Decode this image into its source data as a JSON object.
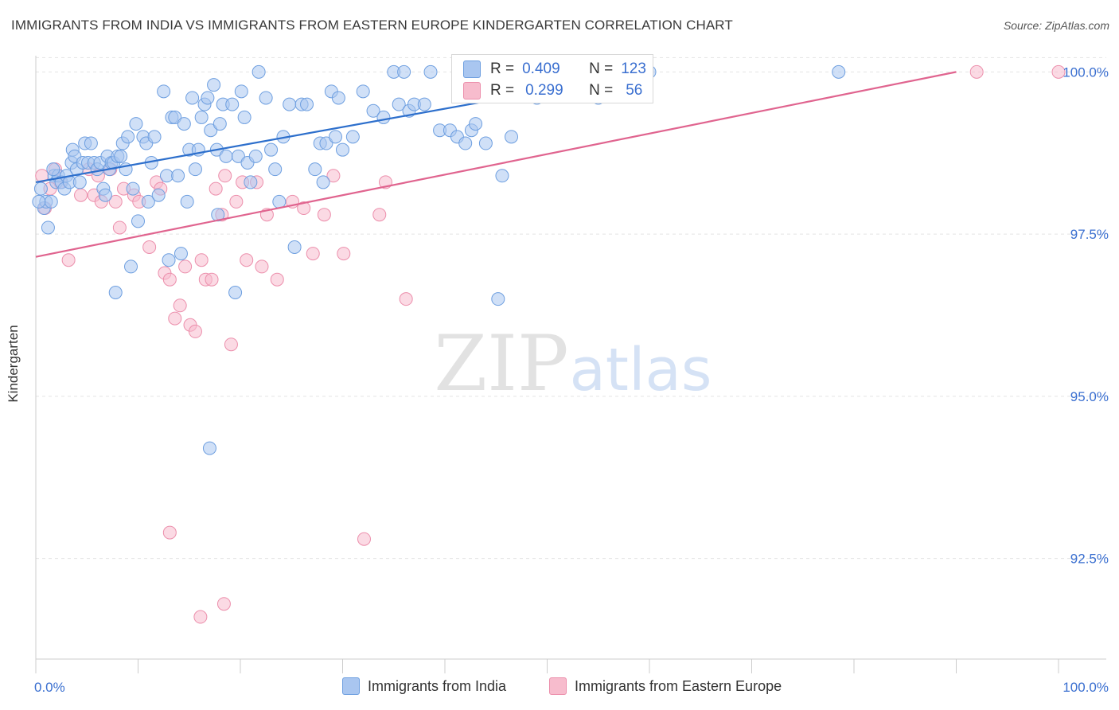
{
  "title": "IMMIGRANTS FROM INDIA VS IMMIGRANTS FROM EASTERN EUROPE KINDERGARTEN CORRELATION CHART",
  "source": "Source: ZipAtlas.com",
  "watermark": {
    "zip": "ZIP",
    "atlas": "atlas"
  },
  "colors": {
    "blue_fill": "#a9c6f0",
    "blue_stroke": "#6e9fe0",
    "blue_line": "#2d6fcc",
    "pink_fill": "#f7bccd",
    "pink_stroke": "#ec8fac",
    "pink_line": "#e0648f",
    "tick_label": "#3a6fd0",
    "grid": "#e3e3e3"
  },
  "legend_top": {
    "rows": [
      {
        "r_label": "R =",
        "r_value": "0.409",
        "n_label": "N =",
        "n_value": "123",
        "series": "india"
      },
      {
        "r_label": "R =",
        "r_value": "0.299",
        "n_label": "N =",
        "n_value": "56",
        "series": "eastern_europe"
      }
    ]
  },
  "chart_data": {
    "type": "scatter",
    "title": "IMMIGRANTS FROM INDIA VS IMMIGRANTS FROM EASTERN EUROPE KINDERGARTEN CORRELATION CHART",
    "xlabel": "",
    "ylabel": "Kindergarten",
    "xlim": [
      0,
      100
    ],
    "ylim": [
      90.95,
      100.25
    ],
    "x_tick_labels": [
      "0.0%",
      "100.0%"
    ],
    "y_ticks": [
      92.5,
      95.0,
      97.5,
      100.0
    ],
    "y_tick_labels": [
      "92.5%",
      "95.0%",
      "97.5%",
      "100.0%"
    ],
    "grid": true,
    "legend": "bottom",
    "series": [
      {
        "name": "Immigrants from India",
        "key": "india",
        "r": 0.409,
        "n": 123,
        "trend": {
          "x0": 0,
          "y0": 98.3,
          "x1": 60,
          "y1": 100.0
        },
        "points": [
          [
            0.5,
            98.2
          ],
          [
            0.8,
            97.9
          ],
          [
            1,
            98.0
          ],
          [
            1.2,
            97.6
          ],
          [
            1.5,
            98.0
          ],
          [
            1.8,
            98.4
          ],
          [
            2,
            98.3
          ],
          [
            2.2,
            98.4
          ],
          [
            2.5,
            98.3
          ],
          [
            2.8,
            98.2
          ],
          [
            3,
            98.4
          ],
          [
            3.3,
            98.3
          ],
          [
            3.5,
            98.6
          ],
          [
            3.6,
            98.8
          ],
          [
            3.8,
            98.7
          ],
          [
            4,
            98.5
          ],
          [
            4.3,
            98.3
          ],
          [
            4.6,
            98.6
          ],
          [
            4.8,
            98.9
          ],
          [
            5.1,
            98.6
          ],
          [
            5.4,
            98.9
          ],
          [
            5.7,
            98.6
          ],
          [
            6,
            98.5
          ],
          [
            6.3,
            98.6
          ],
          [
            6.6,
            98.2
          ],
          [
            6.8,
            98.1
          ],
          [
            7,
            98.7
          ],
          [
            7.2,
            98.5
          ],
          [
            7.4,
            98.6
          ],
          [
            7.6,
            98.6
          ],
          [
            8,
            98.7
          ],
          [
            8.3,
            98.7
          ],
          [
            8.5,
            98.9
          ],
          [
            8.8,
            98.5
          ],
          [
            9,
            99.0
          ],
          [
            9.3,
            97.0
          ],
          [
            9.5,
            98.2
          ],
          [
            9.8,
            99.2
          ],
          [
            10,
            97.7
          ],
          [
            10.5,
            99.0
          ],
          [
            10.8,
            98.9
          ],
          [
            11,
            98.0
          ],
          [
            11.3,
            98.6
          ],
          [
            11.6,
            99.0
          ],
          [
            12,
            98.1
          ],
          [
            12.5,
            99.7
          ],
          [
            12.8,
            98.4
          ],
          [
            13,
            97.1
          ],
          [
            13.3,
            99.3
          ],
          [
            13.6,
            99.3
          ],
          [
            13.9,
            98.4
          ],
          [
            14.2,
            97.2
          ],
          [
            14.5,
            99.2
          ],
          [
            14.8,
            98.0
          ],
          [
            15,
            98.8
          ],
          [
            15.3,
            99.6
          ],
          [
            15.6,
            98.5
          ],
          [
            15.9,
            98.8
          ],
          [
            16.2,
            99.3
          ],
          [
            16.5,
            99.5
          ],
          [
            16.8,
            99.6
          ],
          [
            17.1,
            99.1
          ],
          [
            17.4,
            99.8
          ],
          [
            17.7,
            98.8
          ],
          [
            18,
            99.2
          ],
          [
            18.3,
            99.5
          ],
          [
            18.6,
            98.7
          ],
          [
            17,
            94.2
          ],
          [
            17.8,
            97.8
          ],
          [
            19.2,
            99.5
          ],
          [
            19.5,
            96.6
          ],
          [
            19.8,
            98.7
          ],
          [
            20.1,
            99.7
          ],
          [
            20.4,
            99.3
          ],
          [
            20.7,
            98.6
          ],
          [
            21,
            98.3
          ],
          [
            21.5,
            98.7
          ],
          [
            21.8,
            100.0
          ],
          [
            22.5,
            99.6
          ],
          [
            23,
            98.8
          ],
          [
            23.4,
            98.5
          ],
          [
            23.8,
            98.0
          ],
          [
            24.2,
            99.0
          ],
          [
            24.8,
            99.5
          ],
          [
            25.3,
            97.3
          ],
          [
            26,
            99.5
          ],
          [
            26.5,
            99.5
          ],
          [
            27.3,
            98.5
          ],
          [
            27.8,
            98.9
          ],
          [
            28.1,
            98.3
          ],
          [
            28.4,
            98.9
          ],
          [
            28.9,
            99.7
          ],
          [
            29.3,
            99.0
          ],
          [
            29.6,
            99.6
          ],
          [
            30,
            98.8
          ],
          [
            31,
            99.0
          ],
          [
            32,
            99.7
          ],
          [
            33,
            99.4
          ],
          [
            34,
            99.3
          ],
          [
            35,
            100.0
          ],
          [
            35.5,
            99.5
          ],
          [
            36,
            100.0
          ],
          [
            36.5,
            99.4
          ],
          [
            37,
            99.5
          ],
          [
            38,
            99.5
          ],
          [
            38.6,
            100.0
          ],
          [
            39.5,
            99.1
          ],
          [
            40.5,
            99.1
          ],
          [
            41.2,
            99.0
          ],
          [
            42,
            98.9
          ],
          [
            42.6,
            99.1
          ],
          [
            43,
            99.2
          ],
          [
            44,
            98.9
          ],
          [
            45.2,
            96.5
          ],
          [
            45.6,
            98.4
          ],
          [
            46,
            99.8
          ],
          [
            46.5,
            99.0
          ],
          [
            47.5,
            100.0
          ],
          [
            48.3,
            99.9
          ],
          [
            49,
            99.6
          ],
          [
            50,
            100.0
          ],
          [
            55,
            99.6
          ],
          [
            60,
            100.0
          ],
          [
            78.5,
            100.0
          ],
          [
            0.3,
            98.0
          ],
          [
            1.7,
            98.5
          ],
          [
            7.8,
            96.6
          ]
        ]
      },
      {
        "name": "Immigrants from Eastern Europe",
        "key": "eastern_europe",
        "r": 0.299,
        "n": 56,
        "trend": {
          "x0": 0,
          "y0": 97.15,
          "x1": 90,
          "y1": 100.0
        },
        "points": [
          [
            0.6,
            98.4
          ],
          [
            0.9,
            97.9
          ],
          [
            1.4,
            98.2
          ],
          [
            1.9,
            98.5
          ],
          [
            2.4,
            98.3
          ],
          [
            3.2,
            97.1
          ],
          [
            4.4,
            98.1
          ],
          [
            5.2,
            98.5
          ],
          [
            5.7,
            98.1
          ],
          [
            6.1,
            98.4
          ],
          [
            6.4,
            98.0
          ],
          [
            7.3,
            98.5
          ],
          [
            7.8,
            98.0
          ],
          [
            8.2,
            97.6
          ],
          [
            8.6,
            98.2
          ],
          [
            9.6,
            98.1
          ],
          [
            10.1,
            98.0
          ],
          [
            11.1,
            97.3
          ],
          [
            11.8,
            98.3
          ],
          [
            12.2,
            98.2
          ],
          [
            12.6,
            96.9
          ],
          [
            13.1,
            96.8
          ],
          [
            13.6,
            96.2
          ],
          [
            14.1,
            96.4
          ],
          [
            14.6,
            97.0
          ],
          [
            15.1,
            96.1
          ],
          [
            15.6,
            96.0
          ],
          [
            16.2,
            97.1
          ],
          [
            16.6,
            96.8
          ],
          [
            17.2,
            96.8
          ],
          [
            17.6,
            98.2
          ],
          [
            18.2,
            97.8
          ],
          [
            18.5,
            98.4
          ],
          [
            19.1,
            95.8
          ],
          [
            19.6,
            98.0
          ],
          [
            20.2,
            98.3
          ],
          [
            20.6,
            97.1
          ],
          [
            21.6,
            98.3
          ],
          [
            22.1,
            97.0
          ],
          [
            22.6,
            97.8
          ],
          [
            23.6,
            96.8
          ],
          [
            25.1,
            98.0
          ],
          [
            26.2,
            97.9
          ],
          [
            27.1,
            97.2
          ],
          [
            28.2,
            97.8
          ],
          [
            29.1,
            98.4
          ],
          [
            30.1,
            97.2
          ],
          [
            32.1,
            92.8
          ],
          [
            33.6,
            97.8
          ],
          [
            34.2,
            98.3
          ],
          [
            36.2,
            96.5
          ],
          [
            13.1,
            92.9
          ],
          [
            16.1,
            91.6
          ],
          [
            18.4,
            91.8
          ],
          [
            92,
            100.0
          ],
          [
            100,
            100.0
          ]
        ]
      }
    ]
  },
  "legend_bottom": {
    "items": [
      {
        "label": "Immigrants from India",
        "series": "india"
      },
      {
        "label": "Immigrants from Eastern Europe",
        "series": "eastern_europe"
      }
    ]
  }
}
